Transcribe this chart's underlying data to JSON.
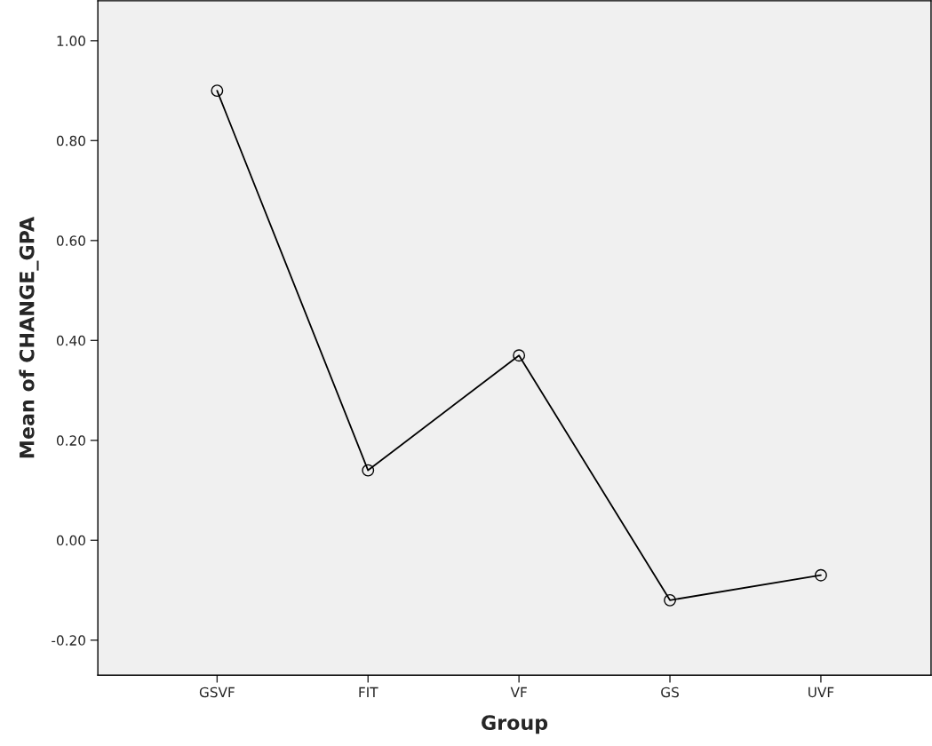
{
  "chart_data": {
    "type": "line",
    "xlabel": "Group",
    "ylabel": "Mean of CHANGE_GPA",
    "categories": [
      "GSVF",
      "FIT",
      "VF",
      "GS",
      "UVF"
    ],
    "series": [
      {
        "color": "#000000",
        "values": [
          0.9,
          0.14,
          0.37,
          -0.12,
          -0.07
        ]
      }
    ],
    "ylim": [
      -0.27,
      1.08
    ],
    "yticks": [
      {
        "value": -0.2,
        "label": "-0.20"
      },
      {
        "value": 0.0,
        "label": "0.00"
      },
      {
        "value": 0.2,
        "label": "0.20"
      },
      {
        "value": 0.4,
        "label": "0.40"
      },
      {
        "value": 0.6,
        "label": "0.60"
      },
      {
        "value": 0.8,
        "label": "0.80"
      },
      {
        "value": 1.0,
        "label": "1.00"
      }
    ],
    "marker": "circle",
    "line_style": "solid",
    "grid": false,
    "legend": false
  }
}
